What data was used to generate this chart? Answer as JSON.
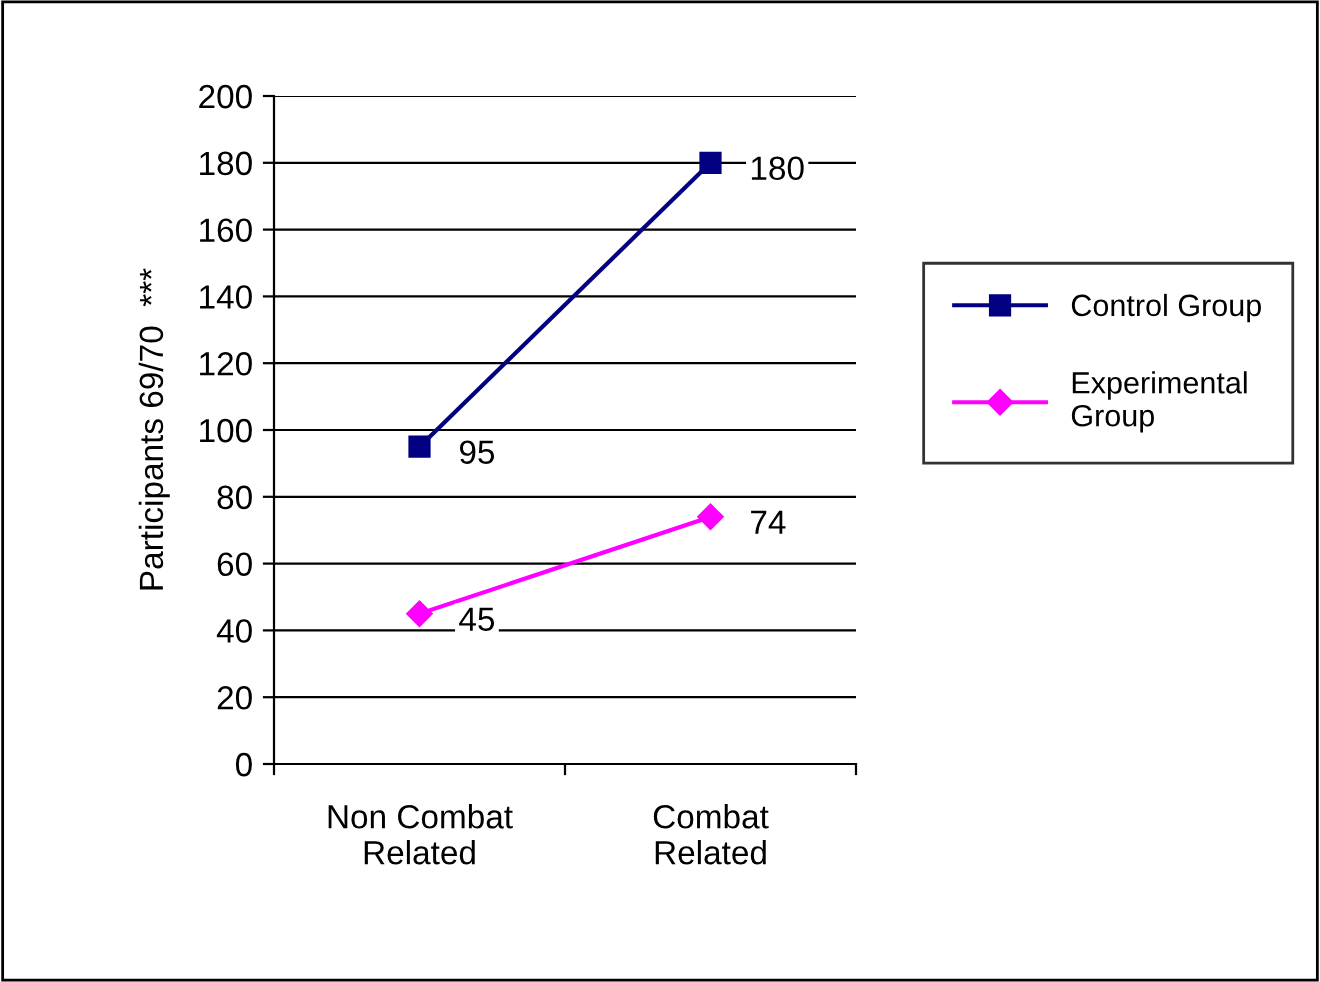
{
  "chart_data": {
    "type": "line",
    "ylabel": "Participants 69/70  ***",
    "categories": [
      "Non Combat\nRelated",
      "Combat\nRelated"
    ],
    "series": [
      {
        "name": "Control Group",
        "color": "#000080",
        "values": [
          95,
          180
        ],
        "marker": "square"
      },
      {
        "name": "Experimental\nGroup",
        "color": "#ff00ff",
        "values": [
          45,
          74
        ],
        "marker": "diamond"
      }
    ],
    "ylim": [
      0,
      200
    ],
    "yticks": [
      0,
      20,
      40,
      60,
      80,
      100,
      120,
      140,
      160,
      180,
      200
    ],
    "grid": "y",
    "legend": "right",
    "data_labels": true,
    "line_style": "solid"
  }
}
